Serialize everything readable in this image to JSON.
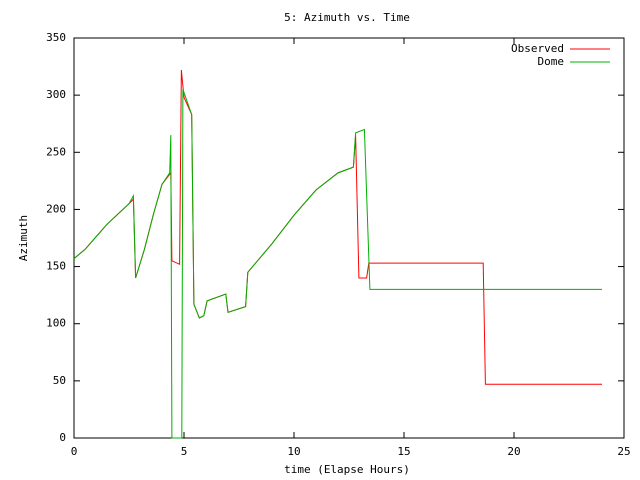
{
  "chart_data": {
    "type": "line",
    "title": "5: Azimuth vs. Time",
    "x_label": "time (Elapse Hours)",
    "y_label": "Azimuth",
    "xlim": [
      0,
      25
    ],
    "xticks": [
      0,
      5,
      10,
      15,
      20,
      25
    ],
    "ylim": [
      0,
      350
    ],
    "yticks": [
      0,
      50,
      100,
      150,
      200,
      250,
      300,
      350
    ],
    "grid": false,
    "legend": "top-right",
    "series": [
      {
        "name": "Observed",
        "color": "#ff0000",
        "x": [
          0,
          0.5,
          1,
          1.5,
          2,
          2.5,
          2.7,
          2.8,
          3.2,
          3.6,
          4.0,
          4.4,
          4.45,
          4.8,
          4.88,
          5.0,
          5.35,
          5.45,
          5.7,
          5.9,
          6.05,
          6.9,
          7.0,
          7.8,
          7.9,
          9,
          10,
          11,
          12,
          12.7,
          12.8,
          12.95,
          13.05,
          13.3,
          13.4,
          18.6,
          18.7,
          24
        ],
        "values": [
          157,
          165,
          176,
          187,
          196,
          205,
          209,
          140,
          165,
          195,
          222,
          232,
          155,
          152,
          322,
          298,
          283,
          117,
          105,
          107,
          120,
          126,
          110,
          115,
          145,
          170,
          195,
          217,
          232,
          237,
          265,
          140,
          140,
          140,
          153,
          153,
          47,
          47
        ]
      },
      {
        "name": "Dome",
        "color": "#00b000",
        "x": [
          0,
          0.5,
          1,
          1.5,
          2,
          2.5,
          2.7,
          2.8,
          3.2,
          3.6,
          4.0,
          4.35,
          4.4,
          4.45,
          4.9,
          4.95,
          5.35,
          5.45,
          5.7,
          5.9,
          6.05,
          6.9,
          7.0,
          7.8,
          7.9,
          9,
          10,
          11,
          12,
          12.7,
          12.8,
          13.2,
          13.45,
          24
        ],
        "values": [
          157,
          165,
          176,
          187,
          196,
          205,
          212,
          140,
          165,
          195,
          222,
          232,
          265,
          0,
          0,
          305,
          283,
          117,
          105,
          107,
          120,
          126,
          110,
          115,
          145,
          170,
          195,
          217,
          232,
          237,
          267,
          270,
          130,
          130
        ]
      }
    ]
  }
}
